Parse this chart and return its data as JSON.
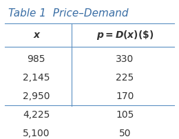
{
  "title": "Table 1  Price–Demand",
  "col1_header": "x",
  "col2_header": "p = D(x)($)",
  "col1_values": [
    "985",
    "2,145",
    "2,950",
    "4,225",
    "5,100"
  ],
  "col2_values": [
    "330",
    "225",
    "170",
    "105",
    "50"
  ],
  "title_color": "#3a6ea5",
  "header_line_color": "#5a8fc2",
  "bg_color": "#ffffff",
  "text_color": "#333333",
  "title_fontsize": 11,
  "header_fontsize": 10,
  "data_fontsize": 10
}
